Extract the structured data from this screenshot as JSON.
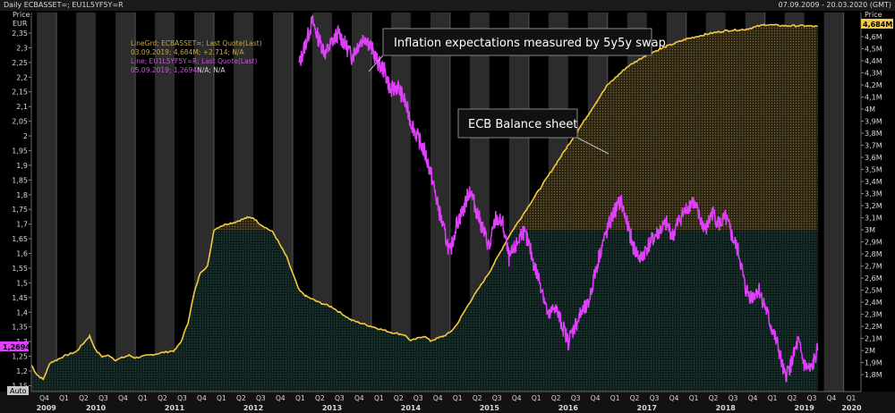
{
  "window": {
    "title": "Daily ECBASSET=; EU1L5YF5Y=R",
    "date_range": "07.09.2009 - 20.03.2020 (GMT)"
  },
  "left_axis": {
    "title": "Price",
    "unit": "EUR",
    "auto_label": "Auto",
    "marker_value": "1,2694"
  },
  "right_axis": {
    "title": "Price",
    "marker_value": "4,684M"
  },
  "legend": {
    "line1_name": "LineGrd; ECBASSET=; Last Quote(Last)",
    "line1_value": "03.09.2019; 4,684M; +2.714; N/A",
    "line2_name": "Line; EU1L5YF5Y=R; Last Quote(Last)",
    "line2_value": "05.09.2019; 1,2694",
    "line2_suffix": "N/A; N/A"
  },
  "annotations": {
    "inflation": "Inflation expectations measured by 5y5y swap",
    "balance": "ECB Balance sheet"
  },
  "colors": {
    "balance_line": "#f5c842",
    "inflation_line": "#e040fb",
    "background": "#000000",
    "column_alt": "#2c2c2c",
    "axis_text": "#d8d8d8"
  },
  "chart_data": {
    "type": "line",
    "x_range": [
      "2009-09-07",
      "2020-03-20"
    ],
    "left_ylim": [
      1.13,
      2.42
    ],
    "right_ylim_millions": [
      1660,
      4800
    ],
    "left_ticks": [
      "1,15",
      "1,2",
      "1,25",
      "1,3",
      "1,35",
      "1,4",
      "1,45",
      "1,5",
      "1,55",
      "1,6",
      "1,65",
      "1,7",
      "1,75",
      "1,8",
      "1,85",
      "1,9",
      "1,95",
      "2",
      "2,05",
      "2,1",
      "2,15",
      "2,2",
      "2,25",
      "2,3",
      "2,35"
    ],
    "left_tick_values": [
      1.15,
      1.2,
      1.25,
      1.3,
      1.35,
      1.4,
      1.45,
      1.5,
      1.55,
      1.6,
      1.65,
      1.7,
      1.75,
      1.8,
      1.85,
      1.9,
      1.95,
      2.0,
      2.05,
      2.1,
      2.15,
      2.2,
      2.25,
      2.3,
      2.35
    ],
    "right_ticks": [
      "1,8M",
      "1,9M",
      "2M",
      "2,1M",
      "2,2M",
      "2,3M",
      "2,4M",
      "2,5M",
      "2,6M",
      "2,7M",
      "2,8M",
      "2,9M",
      "3M",
      "3,1M",
      "3,2M",
      "3,3M",
      "3,4M",
      "3,5M",
      "3,6M",
      "3,7M",
      "3,8M",
      "3,9M",
      "4M",
      "4,1M",
      "4,2M",
      "4,3M",
      "4,4M",
      "4,5M",
      "4,6M"
    ],
    "right_tick_values": [
      1800,
      1900,
      2000,
      2100,
      2200,
      2300,
      2400,
      2500,
      2600,
      2700,
      2800,
      2900,
      3000,
      3100,
      3200,
      3300,
      3400,
      3500,
      3600,
      3700,
      3800,
      3900,
      4000,
      4100,
      4200,
      4300,
      4400,
      4500,
      4600
    ],
    "quarter_labels": [
      "Q4",
      "Q1",
      "Q2",
      "Q3",
      "Q4",
      "Q1",
      "Q2",
      "Q3",
      "Q4",
      "Q1",
      "Q2",
      "Q3",
      "Q4",
      "Q1",
      "Q2",
      "Q3",
      "Q4",
      "Q1",
      "Q2",
      "Q3",
      "Q4",
      "Q1",
      "Q2",
      "Q3",
      "Q4",
      "Q1",
      "Q2",
      "Q3",
      "Q4",
      "Q1",
      "Q2",
      "Q3",
      "Q4",
      "Q1",
      "Q2",
      "Q3",
      "Q4",
      "Q1",
      "Q2",
      "Q3",
      "Q4",
      "Q1"
    ],
    "quarter_dates": [
      2009.75,
      2010.0,
      2010.25,
      2010.5,
      2010.75,
      2011.0,
      2011.25,
      2011.5,
      2011.75,
      2012.0,
      2012.25,
      2012.5,
      2012.75,
      2013.0,
      2013.25,
      2013.5,
      2013.75,
      2014.0,
      2014.25,
      2014.5,
      2014.75,
      2015.0,
      2015.25,
      2015.5,
      2015.75,
      2016.0,
      2016.25,
      2016.5,
      2016.75,
      2017.0,
      2017.25,
      2017.5,
      2017.75,
      2018.0,
      2018.25,
      2018.5,
      2018.75,
      2019.0,
      2019.25,
      2019.5,
      2019.75,
      2020.0
    ],
    "year_labels": [
      "2009",
      "2010",
      "2011",
      "2012",
      "2013",
      "2014",
      "2015",
      "2016",
      "2017",
      "2018",
      "2019",
      "2020"
    ],
    "year_label_dates": [
      2009.87,
      2010.5,
      2011.5,
      2012.5,
      2013.5,
      2014.5,
      2015.5,
      2016.5,
      2017.5,
      2018.5,
      2019.5,
      2020.1
    ],
    "series": [
      {
        "name": "ECBASSET=",
        "axis": "right",
        "unit": "EUR millions",
        "x": [
          2009.68,
          2009.75,
          2009.83,
          2009.92,
          2010.0,
          2010.08,
          2010.25,
          2010.42,
          2010.5,
          2010.58,
          2010.67,
          2010.75,
          2010.92,
          2011.0,
          2011.17,
          2011.33,
          2011.5,
          2011.58,
          2011.67,
          2011.75,
          2011.83,
          2011.92,
          2012.0,
          2012.08,
          2012.17,
          2012.25,
          2012.42,
          2012.5,
          2012.58,
          2012.75,
          2012.92,
          2013.0,
          2013.08,
          2013.17,
          2013.33,
          2013.5,
          2013.75,
          2014.0,
          2014.25,
          2014.42,
          2014.5,
          2014.67,
          2014.75,
          2014.92,
          2015.0,
          2015.08,
          2015.25,
          2015.5,
          2015.75,
          2016.0,
          2016.25,
          2016.5,
          2016.75,
          2017.0,
          2017.25,
          2017.5,
          2017.75,
          2018.0,
          2018.25,
          2018.5,
          2018.75,
          2019.0,
          2019.25,
          2019.5,
          2019.67
        ],
        "y": [
          1880,
          1800,
          1760,
          1900,
          1920,
          1950,
          1990,
          2120,
          2000,
          1950,
          1960,
          1920,
          1960,
          1940,
          1960,
          1980,
          2000,
          2070,
          2230,
          2480,
          2650,
          2700,
          3000,
          3030,
          3050,
          3060,
          3100,
          3100,
          3050,
          2980,
          2780,
          2640,
          2500,
          2450,
          2400,
          2360,
          2250,
          2200,
          2150,
          2130,
          2080,
          2120,
          2080,
          2120,
          2150,
          2210,
          2400,
          2650,
          2950,
          3200,
          3450,
          3700,
          3950,
          4200,
          4350,
          4450,
          4520,
          4580,
          4620,
          4650,
          4660,
          4700,
          4690,
          4690,
          4684
        ]
      },
      {
        "name": "EU1L5YF5Y=R",
        "axis": "left",
        "unit": "percent",
        "x": [
          2013.08,
          2013.17,
          2013.25,
          2013.33,
          2013.42,
          2013.5,
          2013.58,
          2013.67,
          2013.75,
          2013.83,
          2013.92,
          2014.0,
          2014.08,
          2014.17,
          2014.25,
          2014.33,
          2014.42,
          2014.5,
          2014.58,
          2014.67,
          2014.75,
          2014.83,
          2014.92,
          2015.0,
          2015.08,
          2015.17,
          2015.25,
          2015.33,
          2015.42,
          2015.5,
          2015.58,
          2015.67,
          2015.75,
          2015.83,
          2015.92,
          2016.0,
          2016.08,
          2016.17,
          2016.25,
          2016.33,
          2016.42,
          2016.5,
          2016.58,
          2016.67,
          2016.75,
          2016.83,
          2016.92,
          2017.0,
          2017.08,
          2017.17,
          2017.25,
          2017.33,
          2017.42,
          2017.5,
          2017.58,
          2017.67,
          2017.75,
          2017.83,
          2017.92,
          2018.0,
          2018.08,
          2018.17,
          2018.25,
          2018.33,
          2018.42,
          2018.5,
          2018.58,
          2018.67,
          2018.75,
          2018.83,
          2018.92,
          2019.0,
          2019.08,
          2019.17,
          2019.25,
          2019.33,
          2019.42,
          2019.5,
          2019.58,
          2019.67
        ],
        "y": [
          2.24,
          2.32,
          2.39,
          2.33,
          2.28,
          2.32,
          2.35,
          2.31,
          2.27,
          2.31,
          2.34,
          2.3,
          2.25,
          2.22,
          2.15,
          2.17,
          2.12,
          2.05,
          2.0,
          1.95,
          1.88,
          1.78,
          1.68,
          1.6,
          1.7,
          1.75,
          1.82,
          1.75,
          1.68,
          1.62,
          1.72,
          1.7,
          1.58,
          1.62,
          1.68,
          1.63,
          1.55,
          1.48,
          1.38,
          1.42,
          1.36,
          1.3,
          1.35,
          1.4,
          1.42,
          1.52,
          1.62,
          1.68,
          1.74,
          1.78,
          1.7,
          1.62,
          1.58,
          1.62,
          1.65,
          1.68,
          1.7,
          1.66,
          1.72,
          1.75,
          1.78,
          1.72,
          1.68,
          1.74,
          1.7,
          1.72,
          1.66,
          1.6,
          1.48,
          1.45,
          1.48,
          1.42,
          1.35,
          1.28,
          1.18,
          1.22,
          1.3,
          1.22,
          1.2,
          1.27
        ]
      }
    ]
  }
}
